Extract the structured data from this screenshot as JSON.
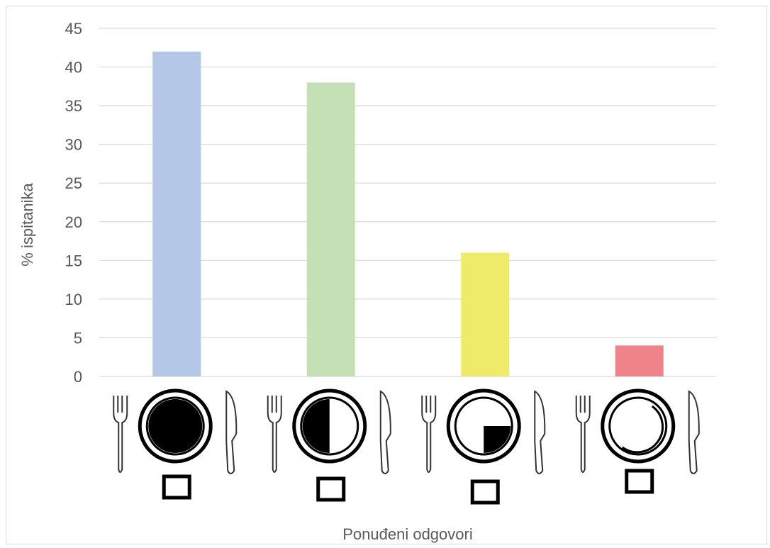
{
  "chart_data": {
    "type": "bar",
    "title": "",
    "xlabel": "Ponuđeni odgovori",
    "ylabel": "% ispitanika",
    "ylim": [
      0,
      45
    ],
    "yticks": [
      0,
      5,
      10,
      15,
      20,
      25,
      30,
      35,
      40,
      45
    ],
    "grid": true,
    "categories": [
      "plate-full",
      "plate-half",
      "plate-quarter",
      "plate-empty"
    ],
    "values": [
      42,
      38,
      16,
      4
    ],
    "colors": [
      "#b4c7e7",
      "#c5e0b4",
      "#f0ea6a",
      "#ee8389"
    ]
  },
  "icons": [
    "fork-icon",
    "plate-icon",
    "knife-icon",
    "checkbox-icon"
  ]
}
